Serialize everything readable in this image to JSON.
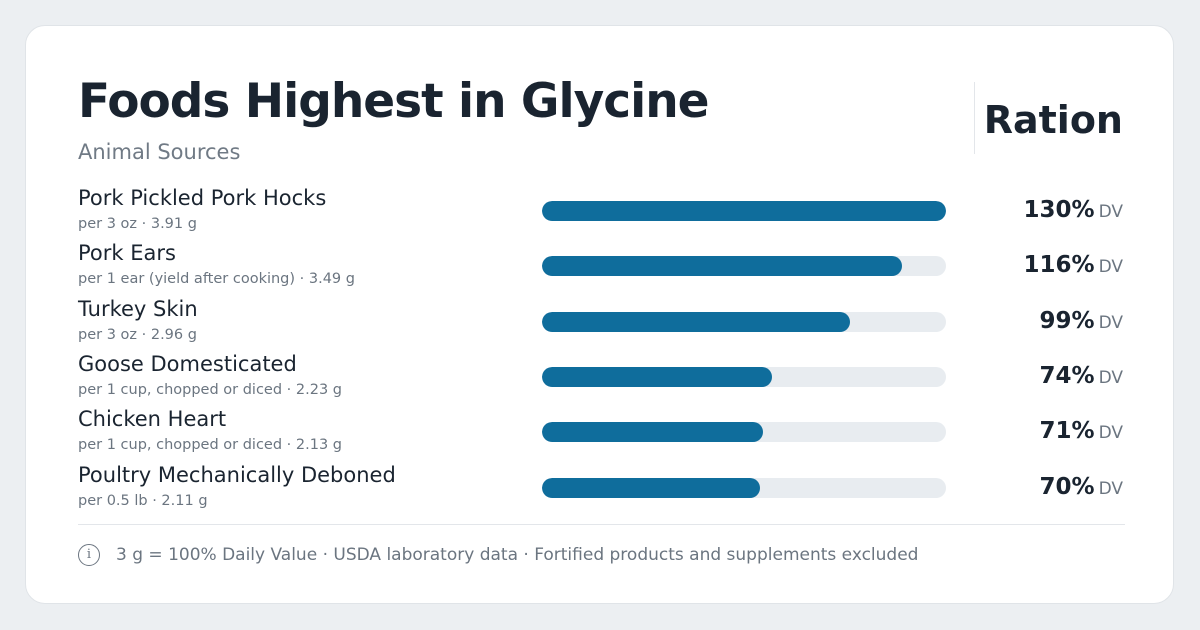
{
  "header": {
    "title": "Foods Highest in Glycine",
    "subtitle": "Animal Sources",
    "brand": "Ration"
  },
  "colors": {
    "bar_fill": "#0f6d9c",
    "bar_track": "#e8ecf0",
    "background": "#eceff2"
  },
  "chart_data": {
    "type": "bar",
    "orientation": "horizontal",
    "title": "Foods Highest in Glycine",
    "subtitle": "Animal Sources",
    "unit": "DV",
    "max": 130,
    "categories": [
      "Pork Pickled Pork Hocks",
      "Pork Ears",
      "Turkey Skin",
      "Goose Domesticated",
      "Chicken Heart",
      "Poultry Mechanically Deboned"
    ],
    "details": [
      "per 3 oz · 3.91 g",
      "per 1 ear (yield after cooking) · 3.49 g",
      "per 3 oz · 2.96 g",
      "per 1 cup, chopped or diced · 2.23 g",
      "per 1 cup, chopped or diced · 2.13 g",
      "per 0.5 lb · 2.11 g"
    ],
    "values": [
      130,
      116,
      99,
      74,
      71,
      70
    ],
    "value_labels": [
      "130%",
      "116%",
      "99%",
      "74%",
      "71%",
      "70%"
    ]
  },
  "footer": {
    "info_icon": "info-icon",
    "info_glyph": "i",
    "note": "3 g = 100% Daily Value · USDA laboratory data · Fortified products and supplements excluded"
  }
}
